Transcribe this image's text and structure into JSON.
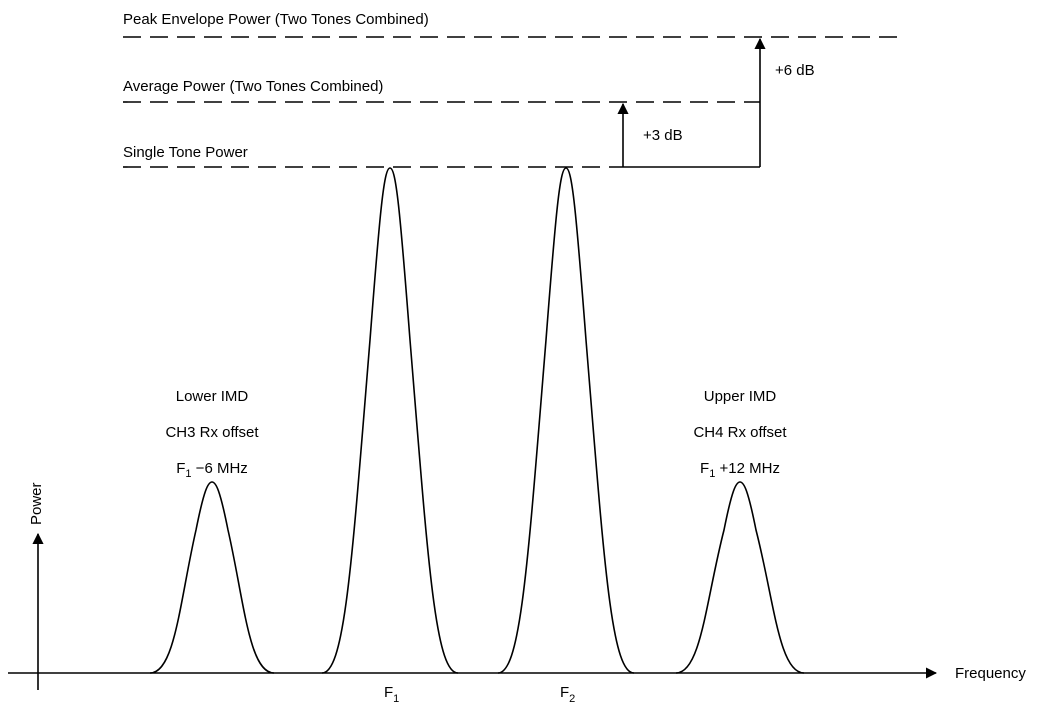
{
  "levels": {
    "peak_envelope": "Peak Envelope Power (Two Tones Combined)",
    "average": "Average Power (Two Tones Combined)",
    "single_tone": "Single Tone Power"
  },
  "annotations": {
    "plus6": "+6 dB",
    "plus3": "+3 dB"
  },
  "peaks": {
    "lower_imd": {
      "line1": "Lower IMD",
      "line2": "CH3 Rx offset",
      "line3_base": "F",
      "line3_sub": "1",
      "line3_rest": " −6 MHz"
    },
    "upper_imd": {
      "line1": "Upper IMD",
      "line2": "CH4 Rx offset",
      "line3_base": "F",
      "line3_sub": "1",
      "line3_rest": " +12 MHz"
    }
  },
  "axes": {
    "x_label": "Frequency",
    "y_label": "Power",
    "f1_base": "F",
    "f1_sub": "1",
    "f2_base": "F",
    "f2_sub": "2"
  }
}
